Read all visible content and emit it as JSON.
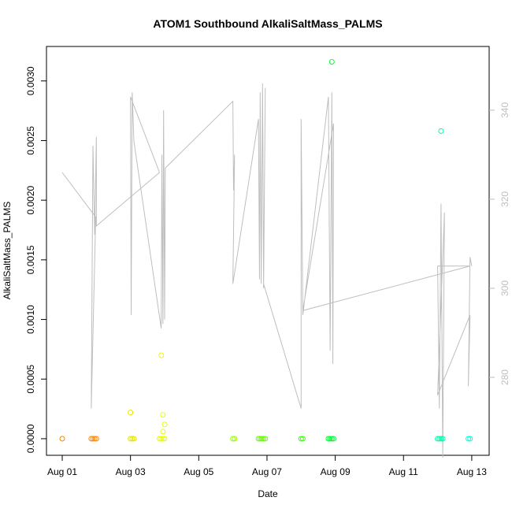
{
  "chart_data": {
    "type": "scatter",
    "title": "ATOM1 Southbound AlkaliSaltMass_PALMS",
    "x_label": "Date",
    "y_label": "AlkaliSaltMass_PALMS",
    "x": [
      1.0,
      1.85,
      1.9,
      1.95,
      2.0,
      3.0,
      3.05,
      3.1,
      3.0,
      3.85,
      3.9,
      3.95,
      4.0,
      3.9,
      3.95,
      4.0,
      3.95,
      6.0,
      6.05,
      6.75,
      6.8,
      6.85,
      6.9,
      6.95,
      8.0,
      8.05,
      8.8,
      8.85,
      8.9,
      8.95,
      8.9,
      12.0,
      12.05,
      12.1,
      12.15,
      12.1,
      12.9,
      12.95
    ],
    "values": [
      0,
      0,
      0,
      0,
      0,
      0,
      0,
      0,
      0.00022,
      0,
      0,
      0,
      0,
      0.0007,
      0.0002,
      0.00012,
      6e-05,
      0,
      0,
      0,
      0,
      0,
      0,
      0,
      0,
      0,
      0,
      0,
      0,
      0,
      0.00316,
      0,
      0,
      0,
      0,
      0.00258,
      0,
      0
    ],
    "colors": [
      "#ff8000",
      "#ff8c00",
      "#ff8c00",
      "#ff8c00",
      "#ff8c00",
      "#e6e600",
      "#e6e600",
      "#e6e600",
      "#e6e600",
      "#e6ff00",
      "#e6ff00",
      "#e6ff00",
      "#e6ff00",
      "#e6ff00",
      "#e6ff00",
      "#e6ff00",
      "#e6ff00",
      "#99ff00",
      "#99ff00",
      "#66ff00",
      "#66ff00",
      "#66ff00",
      "#66ff00",
      "#66ff00",
      "#33ff00",
      "#33ff00",
      "#00ff33",
      "#00ff33",
      "#00ff33",
      "#00ff33",
      "#00ff33",
      "#00ffaa",
      "#00ffaa",
      "#00ffaa",
      "#00ffaa",
      "#00ffaa",
      "#00ffdd",
      "#00ffdd"
    ],
    "line": {
      "color": "#bebebe",
      "axis": "y2",
      "x": [
        1.0,
        1.98,
        1.85,
        1.9,
        1.95,
        2.0,
        2.0,
        3.85,
        3.0,
        3.02,
        3.05,
        3.1,
        3.9,
        3.92,
        3.95,
        3.97,
        4.0,
        4.02,
        6.0,
        6.02,
        6.05,
        6.0,
        6.75,
        6.78,
        6.8,
        6.83,
        6.87,
        6.9,
        6.95,
        6.9,
        8.0,
        8.0,
        8.05,
        8.8,
        8.85,
        8.9,
        8.93,
        8.95,
        8.05,
        12.95,
        12.0,
        12.05,
        12.1,
        12.15,
        12.2,
        12.0,
        12.95,
        12.9,
        12.95,
        13.0
      ],
      "values": [
        326,
        316,
        273,
        332,
        312,
        334,
        314,
        326,
        343,
        294,
        344,
        333,
        291,
        330,
        292,
        340,
        293,
        327,
        342,
        322,
        330,
        301,
        338,
        302,
        344,
        301,
        346,
        300,
        345,
        301,
        273,
        338,
        294,
        343,
        286,
        344,
        283,
        337,
        295,
        305,
        305,
        273,
        319,
        262,
        317,
        276,
        294,
        278,
        307,
        305
      ]
    },
    "xlim": [
      0.538,
      13.51
    ],
    "xticks": [
      {
        "value": 1,
        "label": "Aug 01"
      },
      {
        "value": 3,
        "label": "Aug 03"
      },
      {
        "value": 5,
        "label": "Aug 05"
      },
      {
        "value": 7,
        "label": "Aug 07"
      },
      {
        "value": 9,
        "label": "Aug 09"
      },
      {
        "value": 11,
        "label": "Aug 11"
      },
      {
        "value": 13,
        "label": "Aug 13"
      }
    ],
    "ylim": [
      -0.000139,
      0.003289
    ],
    "yticks": [
      {
        "value": 0,
        "label": "0.0000"
      },
      {
        "value": 0.0005,
        "label": "0.0005"
      },
      {
        "value": 0.001,
        "label": "0.0010"
      },
      {
        "value": 0.0015,
        "label": "0.0015"
      },
      {
        "value": 0.002,
        "label": "0.0020"
      },
      {
        "value": 0.0025,
        "label": "0.0025"
      },
      {
        "value": 0.003,
        "label": "0.0030"
      }
    ],
    "y2lim": [
      262.5,
      354.3
    ],
    "y2ticks": [
      280,
      300,
      320,
      340
    ],
    "y2_color": "#bebebe"
  }
}
